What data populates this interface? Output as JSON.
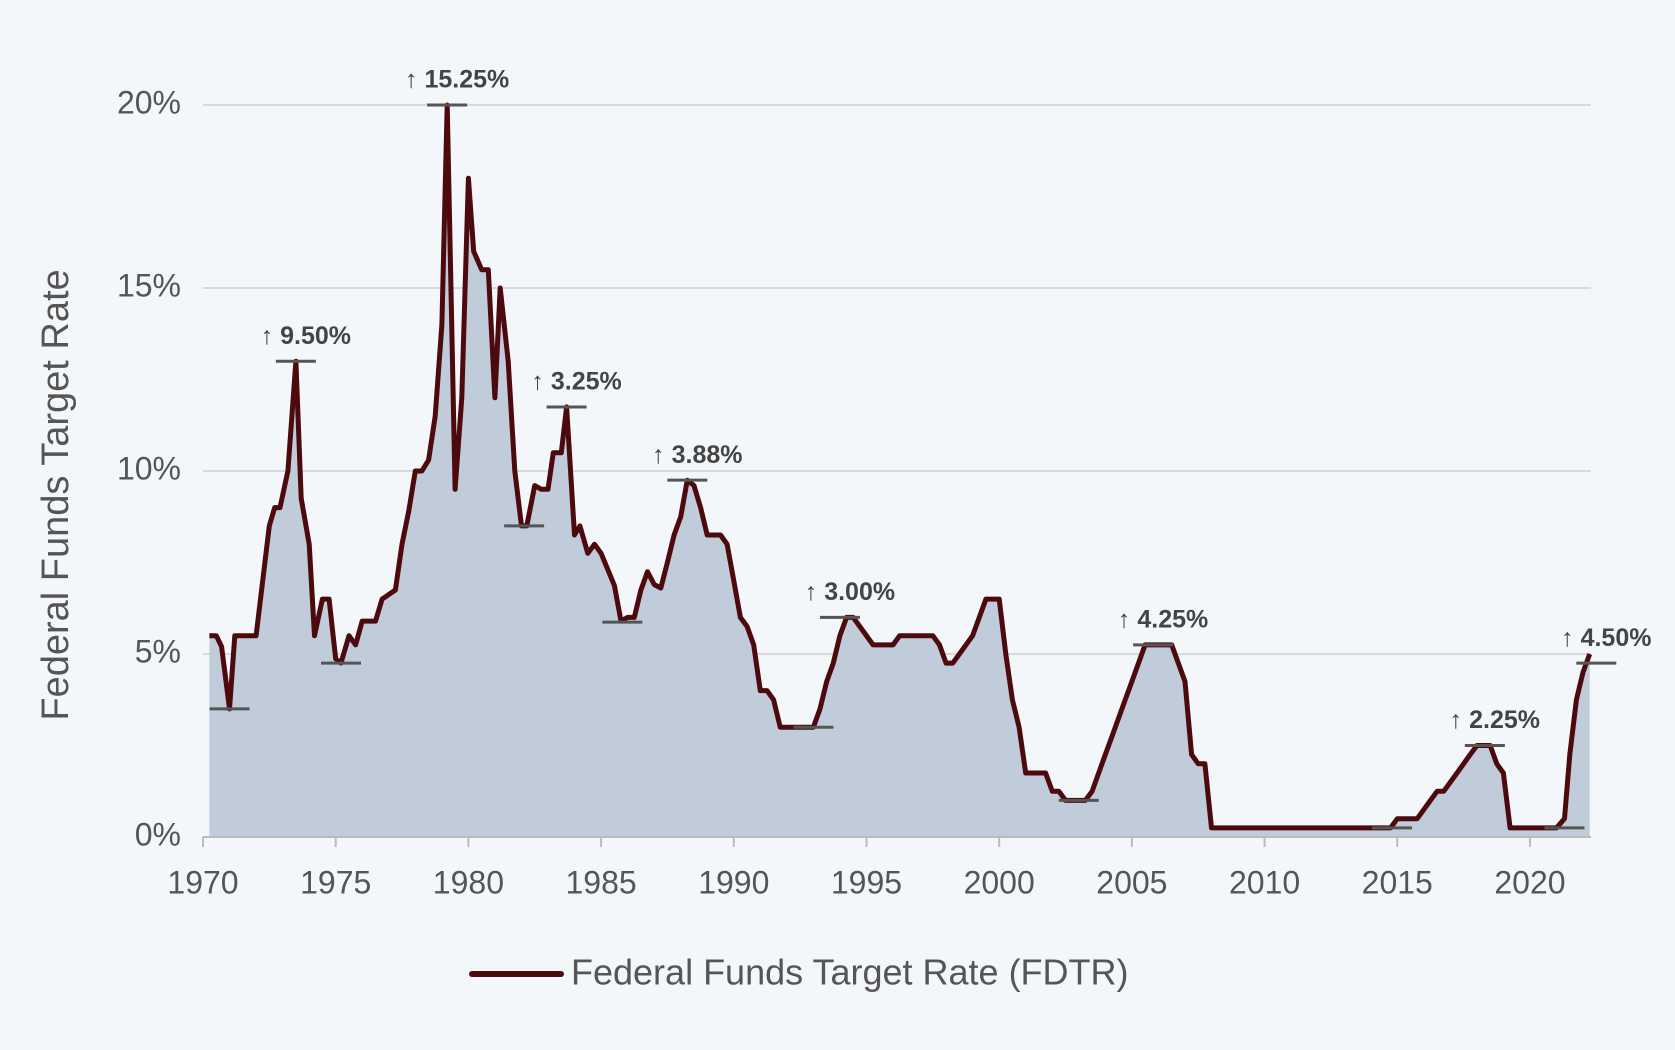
{
  "chart_data": {
    "type": "line",
    "ylabel": "Federal Funds Target Rate",
    "x": [
      1970.24,
      1970.5,
      1970.7,
      1971.0,
      1971.2,
      1972.0,
      1972.5,
      1972.7,
      1972.9,
      1973.2,
      1973.5,
      1973.7,
      1974.0,
      1974.2,
      1974.5,
      1974.75,
      1975.0,
      1975.2,
      1975.5,
      1975.75,
      1976.0,
      1976.5,
      1976.75,
      1977.25,
      1977.5,
      1977.75,
      1978.0,
      1978.25,
      1978.5,
      1978.75,
      1979.0,
      1979.2,
      1979.5,
      1979.75,
      1980.0,
      1980.2,
      1980.5,
      1980.75,
      1981.0,
      1981.2,
      1981.5,
      1981.75,
      1982.0,
      1982.2,
      1982.5,
      1982.75,
      1983.0,
      1983.2,
      1983.5,
      1983.7,
      1984.0,
      1984.2,
      1984.5,
      1984.75,
      1985.0,
      1985.5,
      1985.75,
      1986.0,
      1986.25,
      1986.5,
      1986.75,
      1987.0,
      1987.25,
      1987.5,
      1987.75,
      1988.0,
      1988.25,
      1988.5,
      1988.75,
      1989.0,
      1989.5,
      1989.75,
      1990.0,
      1990.25,
      1990.5,
      1990.75,
      1991.0,
      1991.25,
      1991.5,
      1991.75,
      1993.0,
      1993.25,
      1993.5,
      1993.75,
      1994.0,
      1994.25,
      1994.5,
      1994.75,
      1995.25,
      1996.0,
      1996.25,
      1997.5,
      1997.75,
      1998.0,
      1998.25,
      1998.5,
      1999.0,
      1999.25,
      1999.5,
      2000.0,
      2000.25,
      2000.5,
      2000.75,
      2001.0,
      2001.75,
      2002.0,
      2002.25,
      2002.5,
      2003.25,
      2003.5,
      2004.0,
      2004.25,
      2004.75,
      2005.0,
      2005.25,
      2005.5,
      2006.5,
      2007.0,
      2007.25,
      2007.5,
      2007.75,
      2008.0,
      2014.75,
      2015.0,
      2015.75,
      2016.25,
      2016.5,
      2016.75,
      2017.25,
      2017.75,
      2018.0,
      2018.5,
      2018.75,
      2019.0,
      2019.25,
      2021.0,
      2021.3,
      2021.5,
      2021.75,
      2022.0,
      2022.25
    ],
    "series": [
      {
        "name": "Federal Funds Target Rate (FDTR)",
        "color": "#4d0a0e",
        "fill": "#c0ccd9",
        "values": [
          5.5,
          5.5,
          5.2,
          3.5,
          5.5,
          5.5,
          8.5,
          9.0,
          9.0,
          10.0,
          13.0,
          9.25,
          8.0,
          5.5,
          6.5,
          6.5,
          4.87,
          4.75,
          5.5,
          5.25,
          5.9,
          5.9,
          6.5,
          6.75,
          8.0,
          8.9,
          10.0,
          10.0,
          10.3,
          11.5,
          14.0,
          20.0,
          9.5,
          12.0,
          18.0,
          16.0,
          15.5,
          15.5,
          12.0,
          15.0,
          13.0,
          10.0,
          8.5,
          8.5,
          9.6,
          9.5,
          9.5,
          10.5,
          10.5,
          11.75,
          8.25,
          8.5,
          7.75,
          8.0,
          7.75,
          6.87,
          5.9,
          6.0,
          6.0,
          6.75,
          7.25,
          6.9,
          6.8,
          7.5,
          8.25,
          8.75,
          9.75,
          9.6,
          9.0,
          8.25,
          8.25,
          8.0,
          7.0,
          6.0,
          5.75,
          5.25,
          4.0,
          4.0,
          3.75,
          3.0,
          3.0,
          3.5,
          4.25,
          4.75,
          5.5,
          6.0,
          6.0,
          5.75,
          5.25,
          5.25,
          5.5,
          5.5,
          5.25,
          4.75,
          4.75,
          5.0,
          5.5,
          6.0,
          6.5,
          6.5,
          5.0,
          3.75,
          3.0,
          1.75,
          1.75,
          1.25,
          1.25,
          1.0,
          1.0,
          1.25,
          2.25,
          2.75,
          3.75,
          4.25,
          4.75,
          5.25,
          5.25,
          4.25,
          2.25,
          2.0,
          2.0,
          0.25,
          0.25,
          0.5,
          0.5,
          1.0,
          1.25,
          1.25,
          1.75,
          2.25,
          2.5,
          2.5,
          2.0,
          1.75,
          0.25,
          0.25,
          0.5,
          2.25,
          3.75,
          4.5,
          5.0
        ]
      }
    ],
    "annotations": [
      {
        "label": "↑ 9.50%",
        "low": {
          "x": 1971.0,
          "y": 3.5
        },
        "high": {
          "x": 1973.5,
          "y": 13.0
        }
      },
      {
        "label": "↑ 15.25%",
        "low": {
          "x": 1975.2,
          "y": 4.75
        },
        "high": {
          "x": 1979.2,
          "y": 20.0
        }
      },
      {
        "label": "↑ 3.25%",
        "low": {
          "x": 1982.1,
          "y": 8.5
        },
        "high": {
          "x": 1983.7,
          "y": 11.75
        }
      },
      {
        "label": "↑ 3.88%",
        "low": {
          "x": 1985.8,
          "y": 5.87
        },
        "high": {
          "x": 1988.25,
          "y": 9.75
        }
      },
      {
        "label": "↑ 3.00%",
        "low": {
          "x": 1993.0,
          "y": 3.0
        },
        "high": {
          "x": 1994.0,
          "y": 6.0
        }
      },
      {
        "label": "↑ 4.25%",
        "low": {
          "x": 2003.0,
          "y": 1.0
        },
        "high": {
          "x": 2005.8,
          "y": 5.25
        }
      },
      {
        "label": "↑ 2.25%",
        "low": {
          "x": 2014.8,
          "y": 0.25
        },
        "high": {
          "x": 2018.3,
          "y": 2.5
        }
      },
      {
        "label": "↑ 4.50%",
        "low": {
          "x": 2021.3,
          "y": 0.25
        },
        "high": {
          "x": 2022.5,
          "y": 4.75
        }
      }
    ],
    "xlim": [
      1970,
      2022.3
    ],
    "xticks": [
      1970,
      1975,
      1980,
      1985,
      1990,
      1995,
      2000,
      2005,
      2010,
      2015,
      2020
    ],
    "ylim": [
      0,
      20
    ],
    "yticks": [
      {
        "value": 0,
        "label": "0%"
      },
      {
        "value": 5,
        "label": "5%"
      },
      {
        "value": 10,
        "label": "10%"
      },
      {
        "value": 15,
        "label": "15%"
      },
      {
        "value": 20,
        "label": "20%"
      }
    ],
    "grid": true,
    "legend": "bottom"
  }
}
